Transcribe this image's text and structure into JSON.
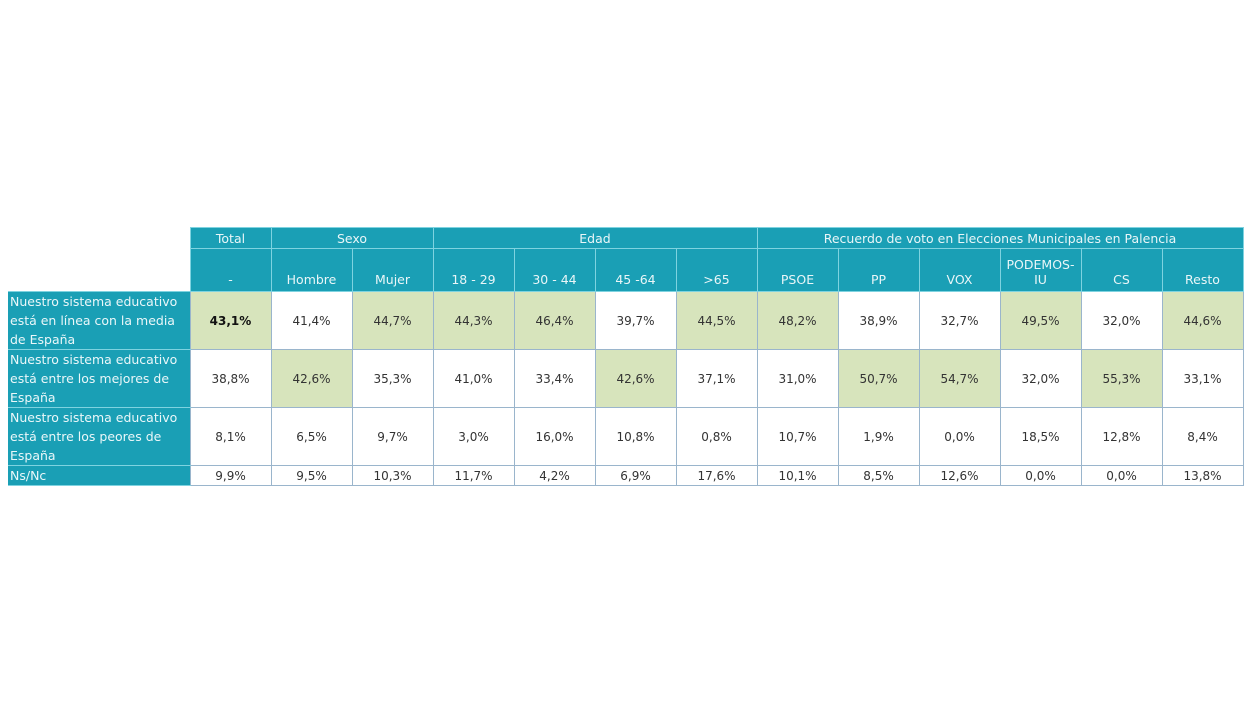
{
  "table": {
    "group_headers": [
      {
        "label": "Total",
        "span": 1
      },
      {
        "label": "Sexo",
        "span": 2
      },
      {
        "label": "Edad",
        "span": 4
      },
      {
        "label": "Recuerdo de voto en Elecciones Municipales en Palencia",
        "span": 6
      }
    ],
    "sub_headers": [
      "-",
      "Hombre",
      "Mujer",
      "18 - 29",
      "30 - 44",
      "45 -64",
      ">65",
      "PSOE",
      "PP",
      "VOX",
      "PODEMOS-IU",
      "CS",
      "Resto"
    ],
    "rows": [
      {
        "label": "Nuestro sistema educativo está en línea con la media de España",
        "values": [
          "43,1%",
          "41,4%",
          "44,7%",
          "44,3%",
          "46,4%",
          "39,7%",
          "44,5%",
          "48,2%",
          "38,9%",
          "32,7%",
          "49,5%",
          "32,0%",
          "44,6%"
        ],
        "highlighted": [
          true,
          false,
          true,
          true,
          true,
          false,
          true,
          true,
          false,
          false,
          true,
          false,
          true
        ]
      },
      {
        "label": "Nuestro sistema educativo está entre los mejores de España",
        "values": [
          "38,8%",
          "42,6%",
          "35,3%",
          "41,0%",
          "33,4%",
          "42,6%",
          "37,1%",
          "31,0%",
          "50,7%",
          "54,7%",
          "32,0%",
          "55,3%",
          "33,1%"
        ],
        "highlighted": [
          false,
          true,
          false,
          false,
          false,
          true,
          false,
          false,
          true,
          true,
          false,
          true,
          false
        ]
      },
      {
        "label": "Nuestro sistema educativo está entre los peores de España",
        "values": [
          "8,1%",
          "6,5%",
          "9,7%",
          "3,0%",
          "16,0%",
          "10,8%",
          "0,8%",
          "10,7%",
          "1,9%",
          "0,0%",
          "18,5%",
          "12,8%",
          "8,4%"
        ],
        "highlighted": [
          false,
          false,
          false,
          false,
          false,
          false,
          false,
          false,
          false,
          false,
          false,
          false,
          false
        ]
      },
      {
        "label": "Ns/Nc",
        "values": [
          "9,9%",
          "9,5%",
          "10,3%",
          "11,7%",
          "4,2%",
          "6,9%",
          "17,6%",
          "10,1%",
          "8,5%",
          "12,6%",
          "0,0%",
          "0,0%",
          "13,8%"
        ],
        "highlighted": [
          false,
          false,
          false,
          false,
          false,
          false,
          false,
          false,
          false,
          false,
          false,
          false,
          false
        ]
      }
    ]
  },
  "colors": {
    "header_bg": "#1a9fb5",
    "highlight_bg": "#d7e4bc",
    "border": "#9ab5cc"
  }
}
